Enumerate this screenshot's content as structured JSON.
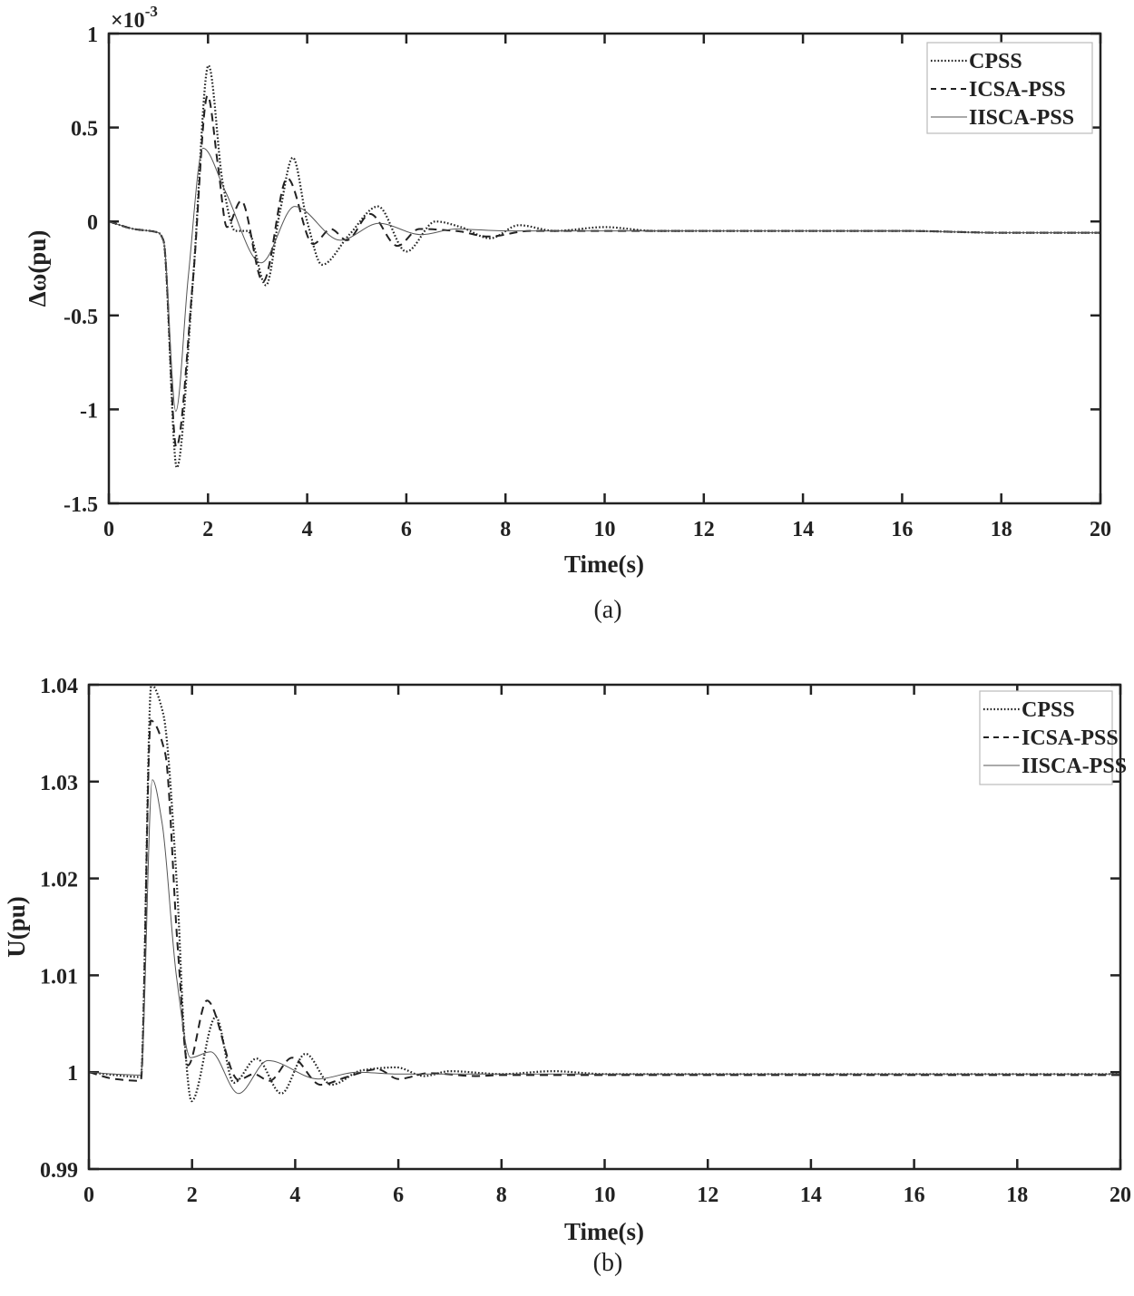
{
  "chart_data": [
    {
      "type": "line",
      "caption": "(a)",
      "xlabel": "Time(s)",
      "ylabel": "Δω(pu)",
      "y_multiplier_base": "×10",
      "y_multiplier_exp": "-3",
      "xlim": [
        0,
        20
      ],
      "ylim": [
        -1.5,
        1
      ],
      "xticks": [
        0,
        2,
        4,
        6,
        8,
        10,
        12,
        14,
        16,
        18,
        20
      ],
      "xtick_labels": [
        "0",
        "2",
        "4",
        "6",
        "8",
        "10",
        "12",
        "14",
        "16",
        "18",
        "20"
      ],
      "yticks": [
        -1.5,
        -1,
        -0.5,
        0,
        0.5,
        1
      ],
      "ytick_labels": [
        "-1.5",
        "-1",
        "-0.5",
        "0",
        "0.5",
        "1"
      ],
      "grid": false,
      "legend_position": "top-right",
      "series": [
        {
          "name": "CPSS",
          "style": "dotted",
          "x": [
            0,
            0.5,
            1.0,
            1.1,
            1.37,
            1.7,
            2.01,
            2.3,
            2.55,
            2.8,
            3.17,
            3.45,
            3.71,
            4.0,
            4.3,
            4.85,
            5.43,
            6.0,
            6.59,
            7.1,
            7.69,
            8.27,
            9,
            10,
            11,
            12,
            14,
            16,
            18,
            20
          ],
          "y": [
            0,
            -0.04,
            -0.06,
            -0.1,
            -1.31,
            -0.3,
            0.83,
            0.2,
            -0.05,
            -0.05,
            -0.34,
            0.05,
            0.34,
            0.0,
            -0.23,
            -0.07,
            0.08,
            -0.16,
            0.0,
            -0.03,
            -0.09,
            -0.02,
            -0.05,
            -0.03,
            -0.05,
            -0.05,
            -0.05,
            -0.05,
            -0.06,
            -0.06
          ]
        },
        {
          "name": "ICSA-PSS",
          "style": "dashed",
          "x": [
            0,
            0.5,
            1.0,
            1.1,
            1.36,
            1.7,
            1.99,
            2.2,
            2.38,
            2.67,
            3.11,
            3.6,
            4.12,
            4.48,
            4.8,
            5.27,
            5.82,
            6.26,
            7,
            7.65,
            8.5,
            10,
            12,
            14,
            16,
            18,
            20
          ],
          "y": [
            0,
            -0.04,
            -0.06,
            -0.1,
            -1.2,
            -0.3,
            0.67,
            0.3,
            -0.03,
            0.11,
            -0.32,
            0.23,
            -0.12,
            -0.04,
            -0.1,
            0.04,
            -0.13,
            -0.04,
            -0.05,
            -0.08,
            -0.05,
            -0.05,
            -0.05,
            -0.05,
            -0.05,
            -0.06,
            -0.06
          ]
        },
        {
          "name": "IISCA-PSS",
          "style": "solid",
          "x": [
            0,
            0.5,
            1.0,
            1.1,
            1.35,
            1.6,
            1.9,
            2.35,
            3.07,
            3.75,
            4.67,
            5.45,
            6.3,
            7.0,
            8,
            10,
            12,
            14,
            16,
            18,
            20
          ],
          "y": [
            0,
            -0.04,
            -0.06,
            -0.1,
            -1.01,
            -0.3,
            0.39,
            0.16,
            -0.22,
            0.08,
            -0.1,
            -0.01,
            -0.07,
            -0.04,
            -0.05,
            -0.05,
            -0.05,
            -0.05,
            -0.05,
            -0.06,
            -0.06
          ]
        }
      ]
    },
    {
      "type": "line",
      "caption": "(b)",
      "xlabel": "Time(s)",
      "ylabel": "U(pu)",
      "xlim": [
        0,
        20
      ],
      "ylim": [
        0.99,
        1.04
      ],
      "xticks": [
        0,
        2,
        4,
        6,
        8,
        10,
        12,
        14,
        16,
        18,
        20
      ],
      "xtick_labels": [
        "0",
        "2",
        "4",
        "6",
        "8",
        "10",
        "12",
        "14",
        "16",
        "18",
        "20"
      ],
      "yticks": [
        0.99,
        1.0,
        1.01,
        1.02,
        1.03,
        1.04
      ],
      "ytick_labels": [
        "0.99",
        "1",
        "1.01",
        "1.02",
        "1.03",
        "1.04"
      ],
      "grid": false,
      "legend_position": "top-right",
      "series": [
        {
          "name": "CPSS",
          "style": "dotted",
          "x": [
            0,
            0.5,
            1.0,
            1.01,
            1.21,
            1.44,
            1.71,
            1.85,
            1.99,
            2.46,
            2.81,
            3.25,
            3.73,
            4.2,
            4.7,
            5.3,
            5.96,
            6.5,
            7,
            8,
            9,
            10,
            12,
            14,
            16,
            18,
            20
          ],
          "y": [
            1.0,
            0.9997,
            0.9995,
            0.9996,
            1.04,
            1.037,
            1.019,
            1.0036,
            0.997,
            1.0057,
            0.9989,
            1.0014,
            0.9978,
            1.0019,
            0.9987,
            1.0002,
            1.0005,
            0.9996,
            1.0001,
            0.9998,
            1.0001,
            0.9998,
            0.9998,
            0.9998,
            0.9998,
            0.9998,
            0.9998
          ]
        },
        {
          "name": "ICSA-PSS",
          "style": "dashed",
          "x": [
            0,
            0.5,
            1.0,
            1.01,
            1.2,
            1.48,
            1.72,
            1.92,
            2.29,
            2.9,
            3.2,
            3.5,
            3.94,
            4.49,
            5.0,
            5.6,
            6.0,
            6.6,
            7.5,
            8,
            10,
            12,
            14,
            16,
            18,
            20
          ],
          "y": [
            1.0,
            0.9993,
            0.9991,
            0.9992,
            1.0363,
            1.0329,
            1.013,
            1.0007,
            1.0074,
            0.9992,
            0.9998,
            0.9991,
            1.0015,
            0.9987,
            0.9995,
            1.0003,
            0.9993,
            0.9999,
            0.9996,
            0.9997,
            0.9997,
            0.9997,
            0.9997,
            0.9997,
            0.9997,
            0.9997
          ]
        },
        {
          "name": "IISCA-PSS",
          "style": "solid",
          "x": [
            0,
            0.5,
            1.0,
            1.01,
            1.23,
            1.42,
            1.7,
            1.97,
            2.36,
            2.9,
            3.47,
            4.45,
            5.2,
            6,
            8,
            10,
            12,
            14,
            16,
            18,
            20
          ],
          "y": [
            1.0,
            0.9998,
            0.9997,
            0.9998,
            1.0302,
            1.0257,
            1.0098,
            1.0015,
            1.0021,
            0.9978,
            1.0012,
            0.9993,
            1.0,
            0.9998,
            0.9998,
            0.9998,
            0.9998,
            0.9998,
            0.9998,
            0.9998,
            0.9998
          ]
        }
      ]
    }
  ]
}
